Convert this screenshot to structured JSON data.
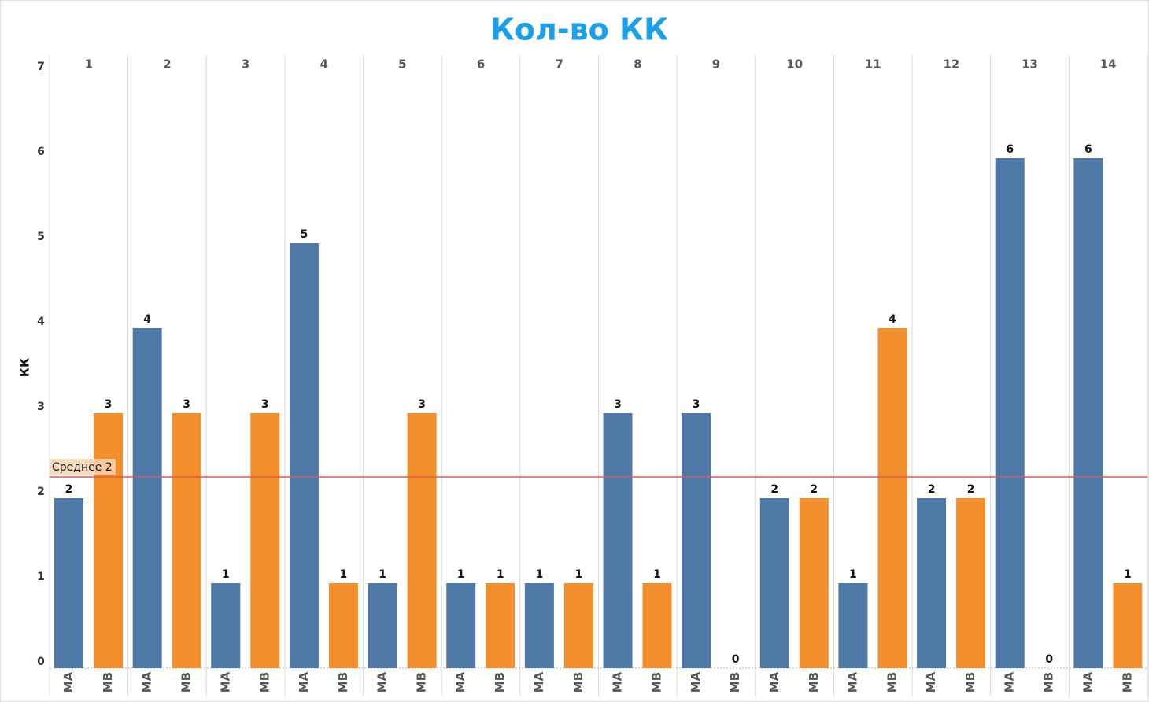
{
  "chart_data": {
    "type": "bar",
    "title": "Кол-во КК",
    "y_label": "КК",
    "categories": [
      "1",
      "2",
      "3",
      "4",
      "5",
      "6",
      "7",
      "8",
      "9",
      "10",
      "11",
      "12",
      "13",
      "14"
    ],
    "series": [
      {
        "name": "MA",
        "color": "#4e79a7",
        "values": [
          2,
          4,
          1,
          5,
          1,
          1,
          1,
          3,
          3,
          2,
          1,
          2,
          6,
          6
        ]
      },
      {
        "name": "MB",
        "color": "#f28e2b",
        "values": [
          3,
          3,
          3,
          1,
          3,
          1,
          1,
          1,
          0,
          2,
          4,
          2,
          0,
          1
        ]
      }
    ],
    "ylim": [
      0,
      7
    ],
    "yticks": [
      0,
      1,
      2,
      3,
      4,
      5,
      6,
      7
    ],
    "reference_line": {
      "label": "Среднее 2",
      "value": 2.25,
      "color": "#e15759"
    }
  }
}
